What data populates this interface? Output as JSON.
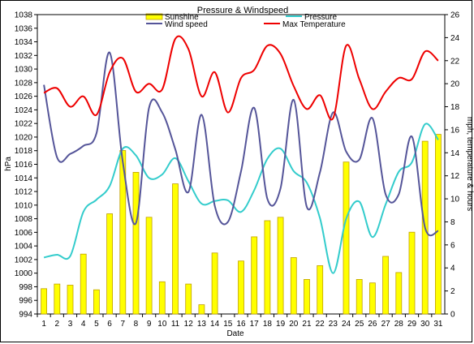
{
  "chart_data": {
    "type": "bar+line",
    "title": "Pressure & Windspeed",
    "xlabel": "Date",
    "ylabel_left": "hPa",
    "ylabel_right": "mph, temperature & hours",
    "ylim_left": [
      994,
      1038
    ],
    "ylim_right": [
      0,
      26
    ],
    "left_ticks": [
      994,
      996,
      998,
      1000,
      1002,
      1004,
      1006,
      1008,
      1010,
      1012,
      1014,
      1016,
      1018,
      1020,
      1022,
      1024,
      1026,
      1028,
      1030,
      1032,
      1034,
      1036,
      1038
    ],
    "right_ticks": [
      0,
      2,
      4,
      6,
      8,
      10,
      12,
      14,
      16,
      18,
      20,
      22,
      24,
      26
    ],
    "categories": [
      "1",
      "2",
      "3",
      "4",
      "5",
      "6",
      "7",
      "8",
      "9",
      "10",
      "11",
      "12",
      "13",
      "14",
      "15",
      "16",
      "17",
      "18",
      "19",
      "20",
      "21",
      "22",
      "23",
      "24",
      "25",
      "26",
      "27",
      "28",
      "29",
      "30",
      "31"
    ],
    "grid": false,
    "legend_placement": "top",
    "series": [
      {
        "name": "Sunshine",
        "type": "bar",
        "axis": "right",
        "color": "#ffff00",
        "edge": "#c0a000",
        "values": [
          2.2,
          2.6,
          2.5,
          5.2,
          2.1,
          8.7,
          14.2,
          12.3,
          8.4,
          2.8,
          11.3,
          2.6,
          0.8,
          5.3,
          0.0,
          4.6,
          6.7,
          8.1,
          8.4,
          4.9,
          3.0,
          4.2,
          0.0,
          13.2,
          3.0,
          2.7,
          5.0,
          3.6,
          7.1,
          15.0,
          15.6
        ]
      },
      {
        "name": "Pressure",
        "type": "line",
        "axis": "left",
        "color": "#33cccc",
        "values": [
          1002.3,
          1002.7,
          1002.5,
          1009.0,
          1010.8,
          1012.8,
          1018.3,
          1017.3,
          1014.0,
          1014.5,
          1016.9,
          1013.5,
          1010.2,
          1010.6,
          1010.7,
          1009.0,
          1012.2,
          1016.8,
          1018.3,
          1015.0,
          1013.3,
          1008.1,
          1000.0,
          1008.0,
          1010.5,
          1005.3,
          1010.1,
          1014.9,
          1016.3,
          1021.9,
          1019.6
        ]
      },
      {
        "name": "Wind speed",
        "type": "line",
        "axis": "right",
        "color": "#555599",
        "values": [
          19.9,
          13.6,
          13.9,
          14.6,
          15.7,
          22.7,
          13.2,
          7.9,
          17.9,
          17.5,
          14.3,
          10.6,
          17.3,
          9.4,
          8.0,
          12.4,
          17.9,
          10.0,
          10.9,
          18.6,
          9.3,
          12.3,
          17.5,
          14.1,
          13.4,
          17.0,
          10.4,
          10.4,
          15.4,
          7.5,
          7.2
        ]
      },
      {
        "name": "Max Temperature",
        "type": "line",
        "axis": "right",
        "color": "#ee0000",
        "values": [
          19.2,
          19.6,
          18.0,
          18.9,
          17.3,
          21.0,
          22.2,
          19.3,
          20.0,
          19.5,
          23.9,
          23.0,
          18.9,
          21.0,
          17.5,
          20.5,
          21.2,
          23.3,
          22.6,
          19.8,
          17.8,
          19.0,
          17.0,
          23.3,
          20.4,
          17.8,
          19.3,
          20.5,
          20.4,
          22.8,
          22.0
        ]
      }
    ]
  }
}
